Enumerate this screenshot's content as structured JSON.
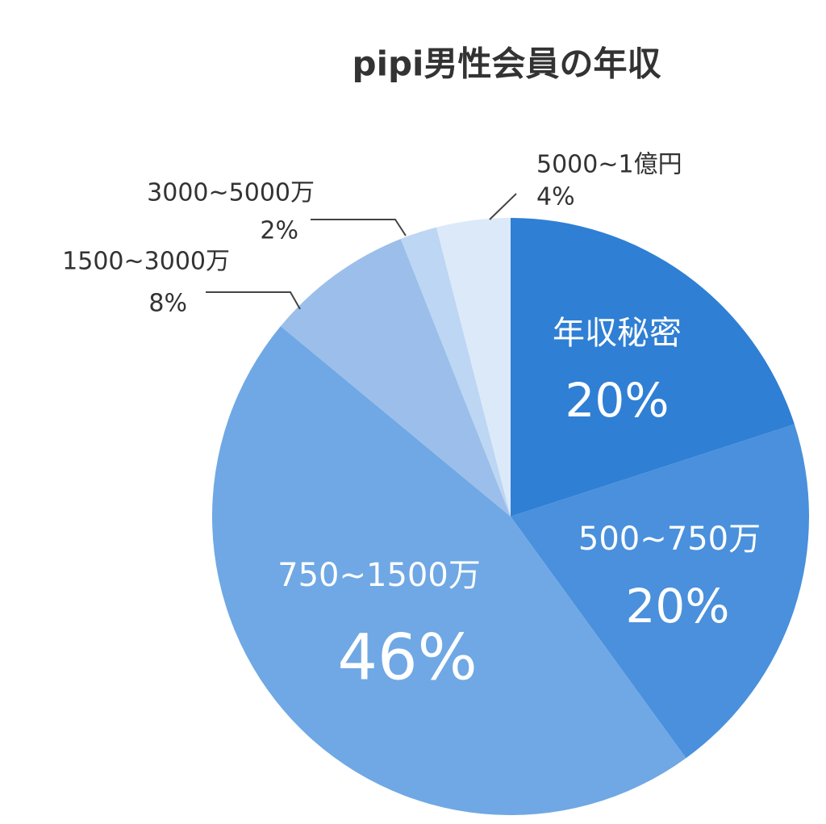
{
  "chart_data": {
    "type": "pie",
    "title": "pipi男性会員の年収",
    "categories": [
      "年収秘密",
      "500~750万",
      "750~1500万",
      "1500~3000万",
      "3000~5000万",
      "5000~1億円"
    ],
    "values": [
      20,
      20,
      46,
      8,
      2,
      4
    ],
    "value_labels": [
      "20%",
      "20%",
      "46%",
      "8%",
      "2%",
      "4%"
    ],
    "colors": [
      "#2f7fd4",
      "#4a90dc",
      "#6fa8e4",
      "#9bbfea",
      "#bcd6f3",
      "#dce9f9"
    ]
  }
}
